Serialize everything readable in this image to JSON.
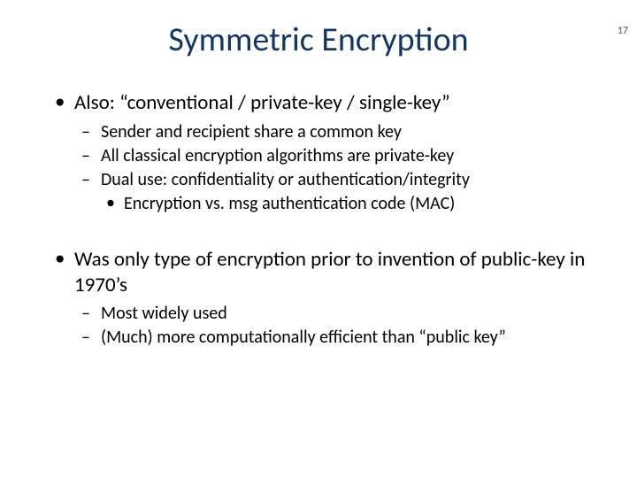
{
  "page_number": "17",
  "title": "Symmetric Encryption",
  "colors": {
    "title": "#17365d",
    "text": "#000000",
    "page_num": "#7f7f7f",
    "background": "#ffffff"
  },
  "typography": {
    "title_fontsize": 38,
    "level1_fontsize": 23,
    "level2_fontsize": 20,
    "level3_fontsize": 20,
    "pagenum_fontsize": 12,
    "font_family": "Calibri"
  },
  "bullets": {
    "b1": {
      "text": "Also: “conventional / private-key  / single-key”",
      "sub": {
        "s1": "Sender and recipient share a common key",
        "s2": "All classical encryption algorithms are private-key",
        "s3": "Dual use:  confidentiality or authentication/integrity",
        "s3_sub": {
          "t1": "Encryption vs. msg authentication code (MAC)"
        }
      }
    },
    "b2": {
      "text": "Was only type of encryption prior to invention of public-key in 1970’s",
      "sub": {
        "s1": "Most widely used",
        "s2": "(Much) more computationally efficient than “public key”"
      }
    }
  }
}
